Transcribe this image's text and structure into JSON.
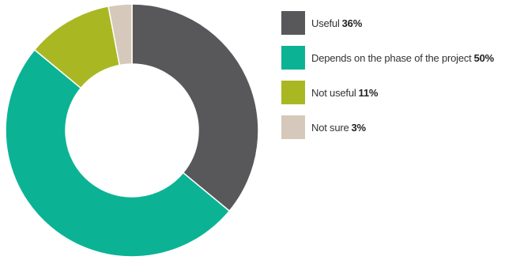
{
  "chart_data": {
    "type": "pie",
    "title": "",
    "categories": [
      "Useful",
      "Depends on the phase of the project",
      "Not useful",
      "Not sure"
    ],
    "values": [
      36,
      50,
      11,
      3
    ],
    "value_labels": [
      "36%",
      "50%",
      "11%",
      "3%"
    ],
    "colors": [
      "#58585a",
      "#0bb394",
      "#a9b822",
      "#d6c9bb"
    ],
    "legend_position": "right"
  }
}
